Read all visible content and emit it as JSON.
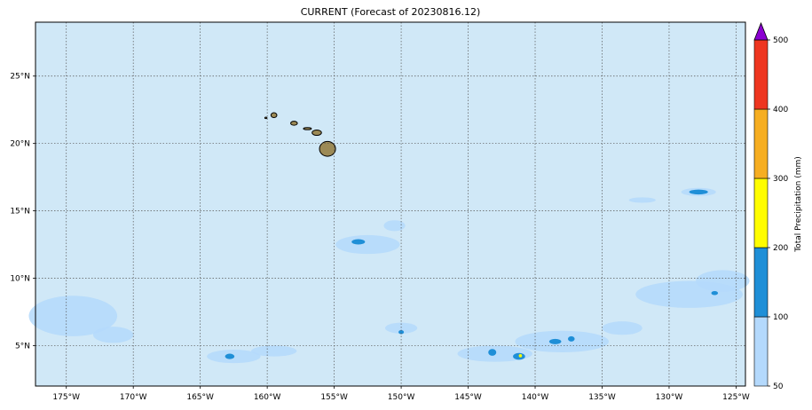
{
  "title": "CURRENT (Forecast of 20230816.12)",
  "map": {
    "lon_range": [
      -177.3,
      -124.3
    ],
    "lat_range": [
      2.0,
      29.0
    ],
    "ocean_color": "#d0e8f7",
    "land_color": "#9c8a56",
    "x_ticks": [
      "175°W",
      "170°W",
      "165°W",
      "160°W",
      "155°W",
      "150°W",
      "145°W",
      "140°W",
      "135°W",
      "130°W",
      "125°W"
    ],
    "x_tick_values": [
      -175,
      -170,
      -165,
      -160,
      -155,
      -150,
      -145,
      -140,
      -135,
      -130,
      -125
    ],
    "y_ticks": [
      "5°N",
      "10°N",
      "15°N",
      "20°N",
      "25°N"
    ],
    "y_tick_values": [
      5,
      10,
      15,
      20,
      25
    ],
    "grid": "dotted",
    "islands": [
      {
        "name": "Hawaii",
        "lon": -155.5,
        "lat": 19.6,
        "rx": 0.6,
        "ry": 0.55
      },
      {
        "name": "Maui",
        "lon": -156.3,
        "lat": 20.8,
        "rx": 0.35,
        "ry": 0.2
      },
      {
        "name": "Molokai",
        "lon": -157.0,
        "lat": 21.1,
        "rx": 0.3,
        "ry": 0.08
      },
      {
        "name": "Oahu",
        "lon": -158.0,
        "lat": 21.5,
        "rx": 0.25,
        "ry": 0.15
      },
      {
        "name": "Kauai",
        "lon": -159.5,
        "lat": 22.1,
        "rx": 0.22,
        "ry": 0.18
      },
      {
        "name": "Niihau",
        "lon": -160.1,
        "lat": 21.9,
        "rx": 0.08,
        "ry": 0.05
      }
    ],
    "precip_areas": [
      {
        "lon": -174.5,
        "lat": 7.2,
        "rx": 3.3,
        "ry": 1.5,
        "level": 1
      },
      {
        "lon": -171.5,
        "lat": 5.8,
        "rx": 1.5,
        "ry": 0.6,
        "level": 1
      },
      {
        "lon": -162.5,
        "lat": 4.2,
        "rx": 2.0,
        "ry": 0.5,
        "level": 1
      },
      {
        "lon": -159.5,
        "lat": 4.6,
        "rx": 1.7,
        "ry": 0.4,
        "level": 1
      },
      {
        "lon": -152.5,
        "lat": 12.5,
        "rx": 2.4,
        "ry": 0.7,
        "level": 1
      },
      {
        "lon": -150.5,
        "lat": 13.9,
        "rx": 0.8,
        "ry": 0.4,
        "level": 1
      },
      {
        "lon": -150.0,
        "lat": 6.3,
        "rx": 1.2,
        "ry": 0.4,
        "level": 1
      },
      {
        "lon": -143.0,
        "lat": 4.4,
        "rx": 2.8,
        "ry": 0.6,
        "level": 1
      },
      {
        "lon": -138.0,
        "lat": 5.3,
        "rx": 3.5,
        "ry": 0.8,
        "level": 1
      },
      {
        "lon": -133.5,
        "lat": 6.3,
        "rx": 1.5,
        "ry": 0.5,
        "level": 1
      },
      {
        "lon": -128.5,
        "lat": 8.8,
        "rx": 4.0,
        "ry": 1.0,
        "level": 1
      },
      {
        "lon": -126.0,
        "lat": 9.8,
        "rx": 2.0,
        "ry": 0.8,
        "level": 1
      },
      {
        "lon": -127.8,
        "lat": 16.4,
        "rx": 1.3,
        "ry": 0.3,
        "level": 1
      },
      {
        "lon": -132.0,
        "lat": 15.8,
        "rx": 1.0,
        "ry": 0.2,
        "level": 1
      },
      {
        "lon": -162.8,
        "lat": 4.2,
        "rx": 0.35,
        "ry": 0.2,
        "level": 2
      },
      {
        "lon": -153.2,
        "lat": 12.7,
        "rx": 0.5,
        "ry": 0.2,
        "level": 2
      },
      {
        "lon": -150.0,
        "lat": 6.0,
        "rx": 0.2,
        "ry": 0.15,
        "level": 2
      },
      {
        "lon": -141.2,
        "lat": 4.2,
        "rx": 0.45,
        "ry": 0.25,
        "level": 2
      },
      {
        "lon": -143.2,
        "lat": 4.5,
        "rx": 0.3,
        "ry": 0.25,
        "level": 2
      },
      {
        "lon": -138.5,
        "lat": 5.3,
        "rx": 0.45,
        "ry": 0.2,
        "level": 2
      },
      {
        "lon": -137.3,
        "lat": 5.5,
        "rx": 0.25,
        "ry": 0.2,
        "level": 2
      },
      {
        "lon": -127.8,
        "lat": 16.4,
        "rx": 0.7,
        "ry": 0.18,
        "level": 2
      },
      {
        "lon": -126.6,
        "lat": 8.9,
        "rx": 0.25,
        "ry": 0.15,
        "level": 2
      },
      {
        "lon": -141.1,
        "lat": 4.25,
        "rx": 0.12,
        "ry": 0.12,
        "level": 3
      }
    ]
  },
  "colorbar": {
    "label": "Total Precipitation (mm)",
    "ticks": [
      "50",
      "100",
      "200",
      "300",
      "400",
      "500"
    ],
    "colors": [
      "#b4d9fc",
      "#1f8fd7",
      "#fffd00",
      "#f6ae22",
      "#ee3620"
    ],
    "extend_color": "#8b00d1"
  }
}
